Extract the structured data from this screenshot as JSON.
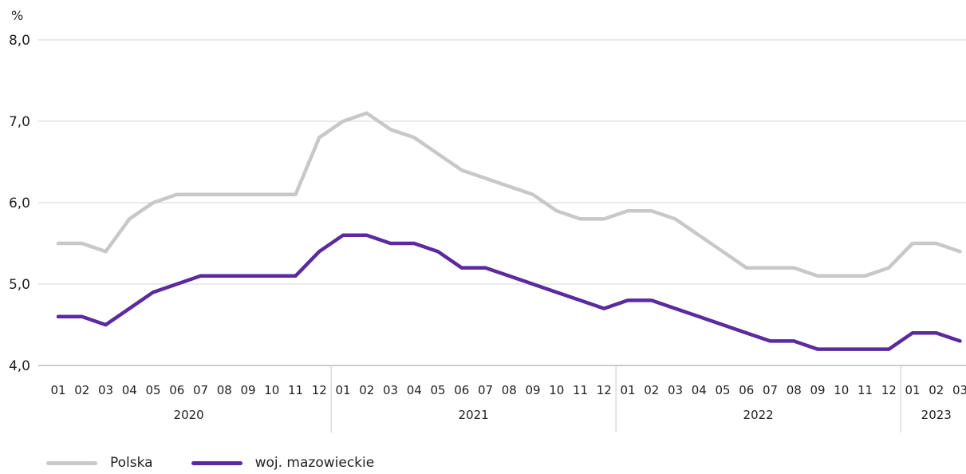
{
  "chart_data": {
    "type": "line",
    "unit_label": "%",
    "ylim": [
      4.0,
      8.0
    ],
    "yticks": [
      "4,0",
      "5,0",
      "6,0",
      "7,0",
      "8,0"
    ],
    "ytick_values": [
      4.0,
      5.0,
      6.0,
      7.0,
      8.0
    ],
    "grid": true,
    "legend_position": "bottom-left",
    "years": [
      {
        "label": "2020",
        "months": 12
      },
      {
        "label": "2021",
        "months": 12
      },
      {
        "label": "2022",
        "months": 12
      },
      {
        "label": "2023",
        "months": 3
      }
    ],
    "categories": [
      "01",
      "02",
      "03",
      "04",
      "05",
      "06",
      "07",
      "08",
      "09",
      "10",
      "11",
      "12",
      "01",
      "02",
      "03",
      "04",
      "05",
      "06",
      "07",
      "08",
      "09",
      "10",
      "11",
      "12",
      "01",
      "02",
      "03",
      "04",
      "05",
      "06",
      "07",
      "08",
      "09",
      "10",
      "11",
      "12",
      "01",
      "02",
      "03"
    ],
    "series": [
      {
        "name": "Polska",
        "color": "#c8c8c8",
        "values": [
          5.5,
          5.5,
          5.4,
          5.8,
          6.0,
          6.1,
          6.1,
          6.1,
          6.1,
          6.1,
          6.1,
          6.8,
          7.0,
          7.1,
          6.9,
          6.8,
          6.6,
          6.4,
          6.3,
          6.2,
          6.1,
          5.9,
          5.8,
          5.8,
          5.9,
          5.9,
          5.8,
          5.6,
          5.4,
          5.2,
          5.2,
          5.2,
          5.1,
          5.1,
          5.1,
          5.2,
          5.5,
          5.5,
          5.4
        ]
      },
      {
        "name": "woj. mazowieckie",
        "color": "#5b2a9e",
        "values": [
          4.6,
          4.6,
          4.5,
          4.7,
          4.9,
          5.0,
          5.1,
          5.1,
          5.1,
          5.1,
          5.1,
          5.4,
          5.6,
          5.6,
          5.5,
          5.5,
          5.4,
          5.2,
          5.2,
          5.1,
          5.0,
          4.9,
          4.8,
          4.7,
          4.8,
          4.8,
          4.7,
          4.6,
          4.5,
          4.4,
          4.3,
          4.3,
          4.2,
          4.2,
          4.2,
          4.2,
          4.4,
          4.4,
          4.3
        ]
      }
    ]
  }
}
